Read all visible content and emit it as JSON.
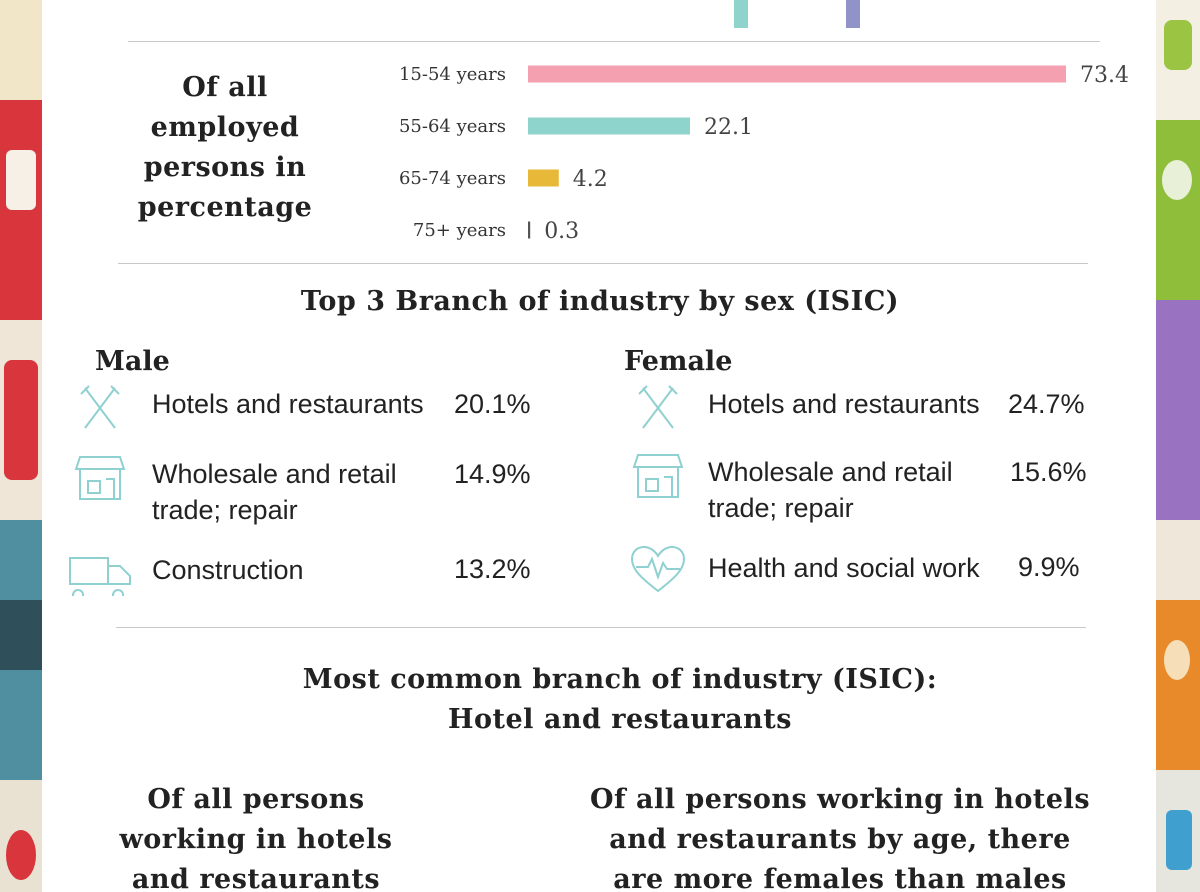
{
  "chart_data": {
    "type": "bar",
    "orientation": "horizontal",
    "title": "Of all employed persons in percentage",
    "categories": [
      "15-54 years",
      "55-64 years",
      "65-74 years",
      "75+ years"
    ],
    "values": [
      73.4,
      22.1,
      4.2,
      0.3
    ],
    "value_labels": [
      "73.4",
      "22.1",
      "4.2",
      "0.3"
    ],
    "colors": [
      "#f4a0b0",
      "#8fd4cc",
      "#e8b838",
      "#555555"
    ],
    "xlim": [
      0,
      73.4
    ]
  },
  "top3": {
    "heading": "Top 3 Branch of  industry by sex (ISIC)",
    "male": {
      "title": "Male",
      "items": [
        {
          "icon": "fork-knife-icon",
          "label": "Hotels and restaurants",
          "pct": "20.1%"
        },
        {
          "icon": "storefront-icon",
          "label": "Wholesale and retail trade; repair",
          "pct": "14.9%"
        },
        {
          "icon": "truck-icon",
          "label": "Construction",
          "pct": "13.2%"
        }
      ]
    },
    "female": {
      "title": "Female",
      "items": [
        {
          "icon": "fork-knife-icon",
          "label": "Hotels and restaurants",
          "pct": "24.7%"
        },
        {
          "icon": "storefront-icon",
          "label": "Wholesale and retail trade; repair",
          "pct": "15.6%"
        },
        {
          "icon": "heartbeat-icon",
          "label": "Health and social work",
          "pct": "9.9%"
        }
      ]
    }
  },
  "most_common": {
    "line1": "Most common branch of industry (ISIC):",
    "line2": "Hotel and restaurants"
  },
  "bottom": {
    "left": [
      "Of all persons",
      "working in hotels",
      "and restaurants"
    ],
    "right": [
      "Of all persons working in hotels",
      "and restaurants by age, there",
      "are more females than males"
    ]
  },
  "top_bar_colors": [
    "#8fd4cc",
    "#8f93c8"
  ]
}
